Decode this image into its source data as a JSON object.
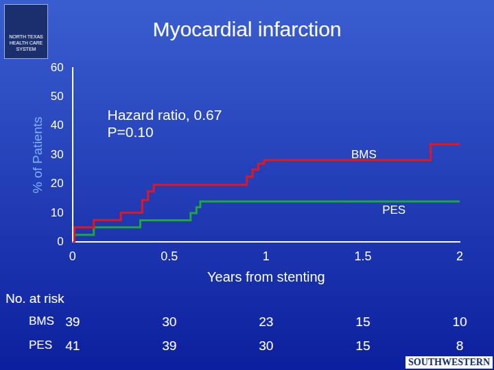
{
  "chart_data": {
    "type": "line",
    "title": "Myocardial infarction",
    "x_label": "Years from stenting",
    "y_label": "% of Patients",
    "annotations": [
      "Hazard ratio, 0.67",
      "P=0.10"
    ],
    "series": [
      {
        "name": "BMS",
        "color": "#e8141c",
        "line_style": "step",
        "x": [
          0,
          0.01,
          0.11,
          0.25,
          0.36,
          0.39,
          0.42,
          0.9,
          0.93,
          0.96,
          0.99,
          1.85,
          2.0
        ],
        "values": [
          0,
          5.1,
          7.6,
          10.1,
          14.5,
          17.5,
          19.7,
          22.5,
          25,
          27,
          28.2,
          33.7,
          33.7
        ]
      },
      {
        "name": "PES",
        "color": "#1fa83a",
        "line_style": "step",
        "x": [
          0,
          0.01,
          0.11,
          0.35,
          0.61,
          0.64,
          0.66,
          2.0
        ],
        "values": [
          0,
          2.5,
          5.1,
          7.5,
          10,
          12,
          14,
          14
        ]
      }
    ],
    "xlim": [
      0,
      2
    ],
    "xticks": [
      0,
      0.5,
      1,
      1.5,
      2
    ],
    "ylim": [
      0,
      60
    ],
    "yticks": [
      0,
      10,
      20,
      30,
      40,
      50,
      60
    ],
    "grid": false,
    "at_risk": {
      "title": "No. at risk",
      "rows": [
        {
          "name": "BMS",
          "values": [
            39,
            30,
            23,
            15,
            10
          ]
        },
        {
          "name": "PES",
          "values": [
            41,
            39,
            30,
            15,
            8
          ]
        }
      ]
    },
    "logos": [
      "NORTH TEXAS HEALTH CARE SYSTEM",
      "SOUTHWESTERN"
    ]
  }
}
